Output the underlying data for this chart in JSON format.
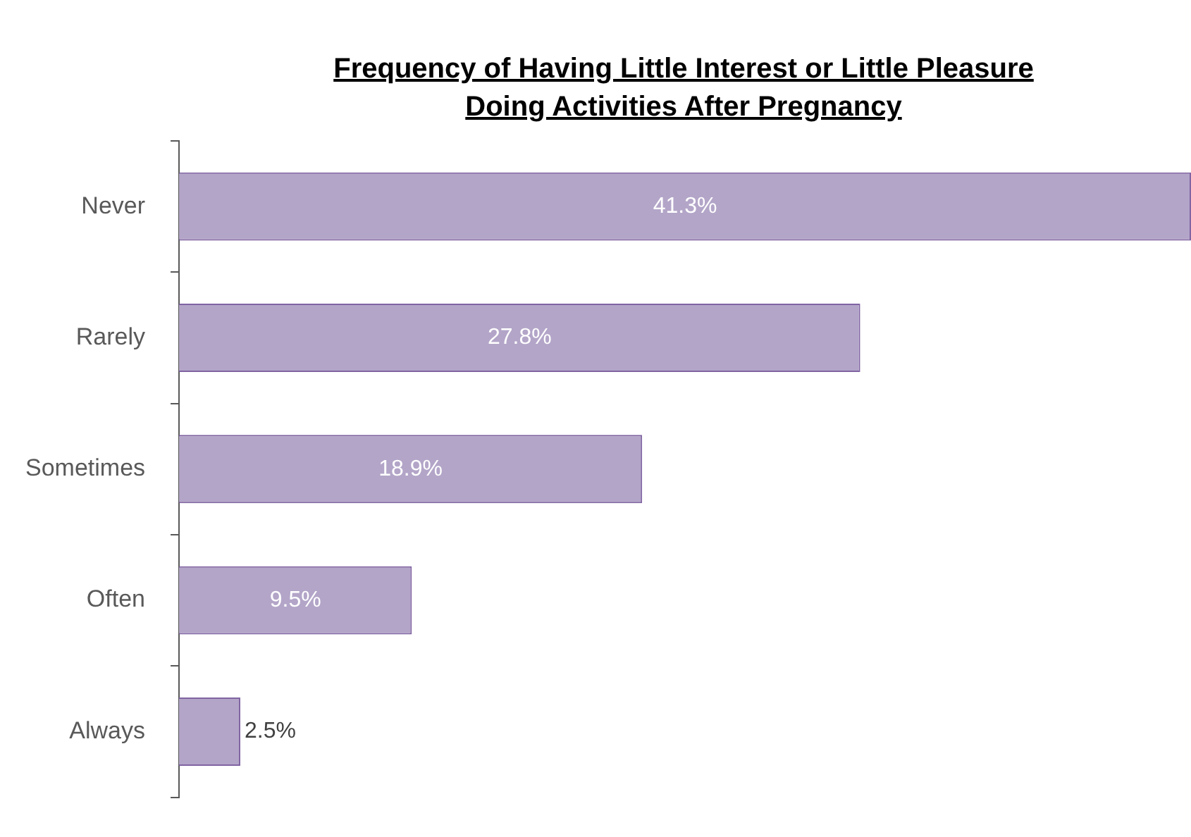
{
  "chart_data": {
    "type": "bar",
    "orientation": "horizontal",
    "title": "Frequency of Having Little Interest or Little Pleasure\n Doing Activities After Pregnancy",
    "categories": [
      "Never",
      "Rarely",
      "Sometimes",
      "Often",
      "Always"
    ],
    "values": [
      41.3,
      27.8,
      18.9,
      9.5,
      2.5
    ],
    "value_labels": [
      "41.3%",
      "27.8%",
      "18.9%",
      "9.5%",
      "2.5%"
    ],
    "color": "#b3a5c8"
  }
}
